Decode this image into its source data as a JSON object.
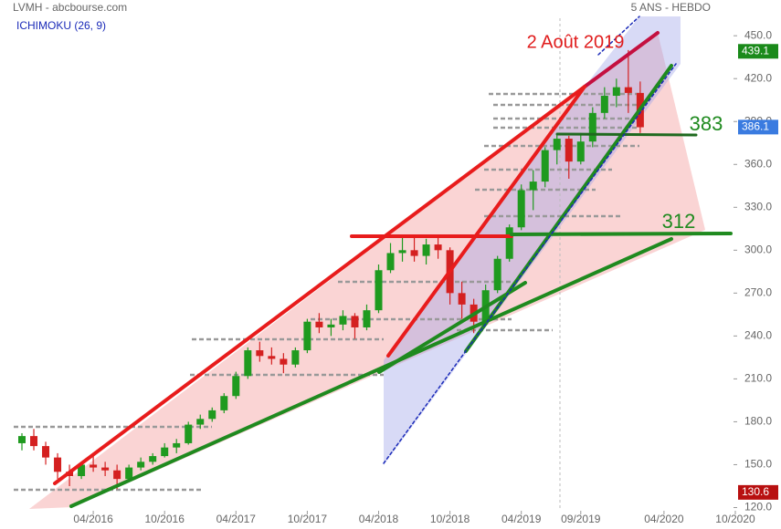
{
  "chart_data": {
    "type": "candlestick",
    "title": "LVMH - abcbourse.com",
    "subtitle": "5 ANS - HEBDO",
    "indicator": "ICHIMOKU (26, 9)",
    "annotations": [
      "2 Août 2019",
      "383",
      "312"
    ],
    "up_color": "#1f9a1f",
    "down_color": "#d42020",
    "x": [
      "2015-10",
      "2015-11",
      "2015-12",
      "2016-01",
      "2016-02",
      "2016-03",
      "2016-04",
      "2016-05",
      "2016-06",
      "2016-07",
      "2016-08",
      "2016-09",
      "2016-10",
      "2016-11",
      "2016-12",
      "2017-01",
      "2017-02",
      "2017-03",
      "2017-04",
      "2017-05",
      "2017-06",
      "2017-07",
      "2017-08",
      "2017-09",
      "2017-10",
      "2017-11",
      "2017-12",
      "2018-01",
      "2018-02",
      "2018-03",
      "2018-04",
      "2018-05",
      "2018-06",
      "2018-07",
      "2018-08",
      "2018-09",
      "2018-10",
      "2018-11",
      "2018-12",
      "2019-01",
      "2019-02",
      "2019-03",
      "2019-04",
      "2019-05",
      "2019-06",
      "2019-07",
      "2019-08",
      "2019-09",
      "2019-10",
      "2019-11",
      "2019-12",
      "2020-01",
      "2020-02"
    ],
    "open": [
      165,
      170,
      163,
      155,
      145,
      142,
      150,
      148,
      146,
      140,
      148,
      152,
      156,
      162,
      165,
      178,
      182,
      188,
      198,
      212,
      230,
      226,
      224,
      220,
      230,
      250,
      246,
      248,
      254,
      246,
      258,
      286,
      298,
      300,
      296,
      304,
      300,
      270,
      262,
      250,
      272,
      294,
      316,
      342,
      348,
      370,
      378,
      362,
      376,
      396,
      408,
      414,
      410
    ],
    "high": [
      172,
      175,
      166,
      158,
      150,
      152,
      157,
      152,
      150,
      150,
      155,
      158,
      165,
      168,
      180,
      185,
      190,
      200,
      215,
      232,
      236,
      232,
      228,
      232,
      252,
      256,
      252,
      258,
      256,
      262,
      290,
      305,
      311,
      310,
      308,
      310,
      302,
      278,
      266,
      276,
      296,
      318,
      346,
      356,
      372,
      382,
      380,
      382,
      400,
      414,
      420,
      440,
      418
    ],
    "low": [
      160,
      160,
      150,
      140,
      135,
      140,
      145,
      142,
      133,
      138,
      146,
      150,
      155,
      158,
      164,
      175,
      180,
      186,
      196,
      210,
      222,
      220,
      214,
      218,
      228,
      242,
      240,
      244,
      238,
      244,
      256,
      284,
      292,
      292,
      290,
      294,
      262,
      252,
      242,
      248,
      270,
      292,
      314,
      328,
      344,
      360,
      350,
      360,
      372,
      392,
      400,
      396,
      382
    ],
    "close": [
      170,
      163,
      155,
      145,
      142,
      150,
      148,
      146,
      140,
      148,
      152,
      156,
      162,
      165,
      178,
      182,
      188,
      198,
      212,
      230,
      226,
      224,
      220,
      230,
      250,
      246,
      248,
      254,
      246,
      258,
      286,
      298,
      300,
      296,
      304,
      300,
      270,
      262,
      250,
      272,
      294,
      316,
      342,
      348,
      370,
      378,
      362,
      376,
      396,
      408,
      414,
      410,
      386
    ],
    "xlim": [
      "2015-10",
      "2020-10"
    ],
    "xticks": [
      {
        "value": "2016-04",
        "label": "04/2016"
      },
      {
        "value": "2016-10",
        "label": "10/2016"
      },
      {
        "value": "2017-04",
        "label": "04/2017"
      },
      {
        "value": "2017-10",
        "label": "10/2017"
      },
      {
        "value": "2018-04",
        "label": "04/2018"
      },
      {
        "value": "2018-10",
        "label": "10/2018"
      },
      {
        "value": "2019-04",
        "label": "04/2019"
      },
      {
        "value": "2019-09",
        "label": "09/2019"
      },
      {
        "value": "2020-04",
        "label": "04/2020"
      },
      {
        "value": "2020-10",
        "label": "10/2020"
      }
    ],
    "ylim": [
      105,
      475
    ],
    "yticks": [
      {
        "value": 120,
        "label": "120.0"
      },
      {
        "value": 150,
        "label": "150.0"
      },
      {
        "value": 180,
        "label": "180.0"
      },
      {
        "value": 210,
        "label": "210.0"
      },
      {
        "value": 240,
        "label": "240.0"
      },
      {
        "value": 270,
        "label": "270.0"
      },
      {
        "value": 300,
        "label": "300.0"
      },
      {
        "value": 330,
        "label": "330.0"
      },
      {
        "value": 360,
        "label": "360.0"
      },
      {
        "value": 390,
        "label": "390.0"
      },
      {
        "value": 420,
        "label": "420.0"
      },
      {
        "value": 450,
        "label": "450.0"
      }
    ],
    "price_markers": [
      {
        "value": 439.1,
        "color": "#1a8a1a"
      },
      {
        "value": 386.1,
        "color": "#3a7be0"
      },
      {
        "value": 130.6,
        "color": "#b81010"
      }
    ]
  }
}
